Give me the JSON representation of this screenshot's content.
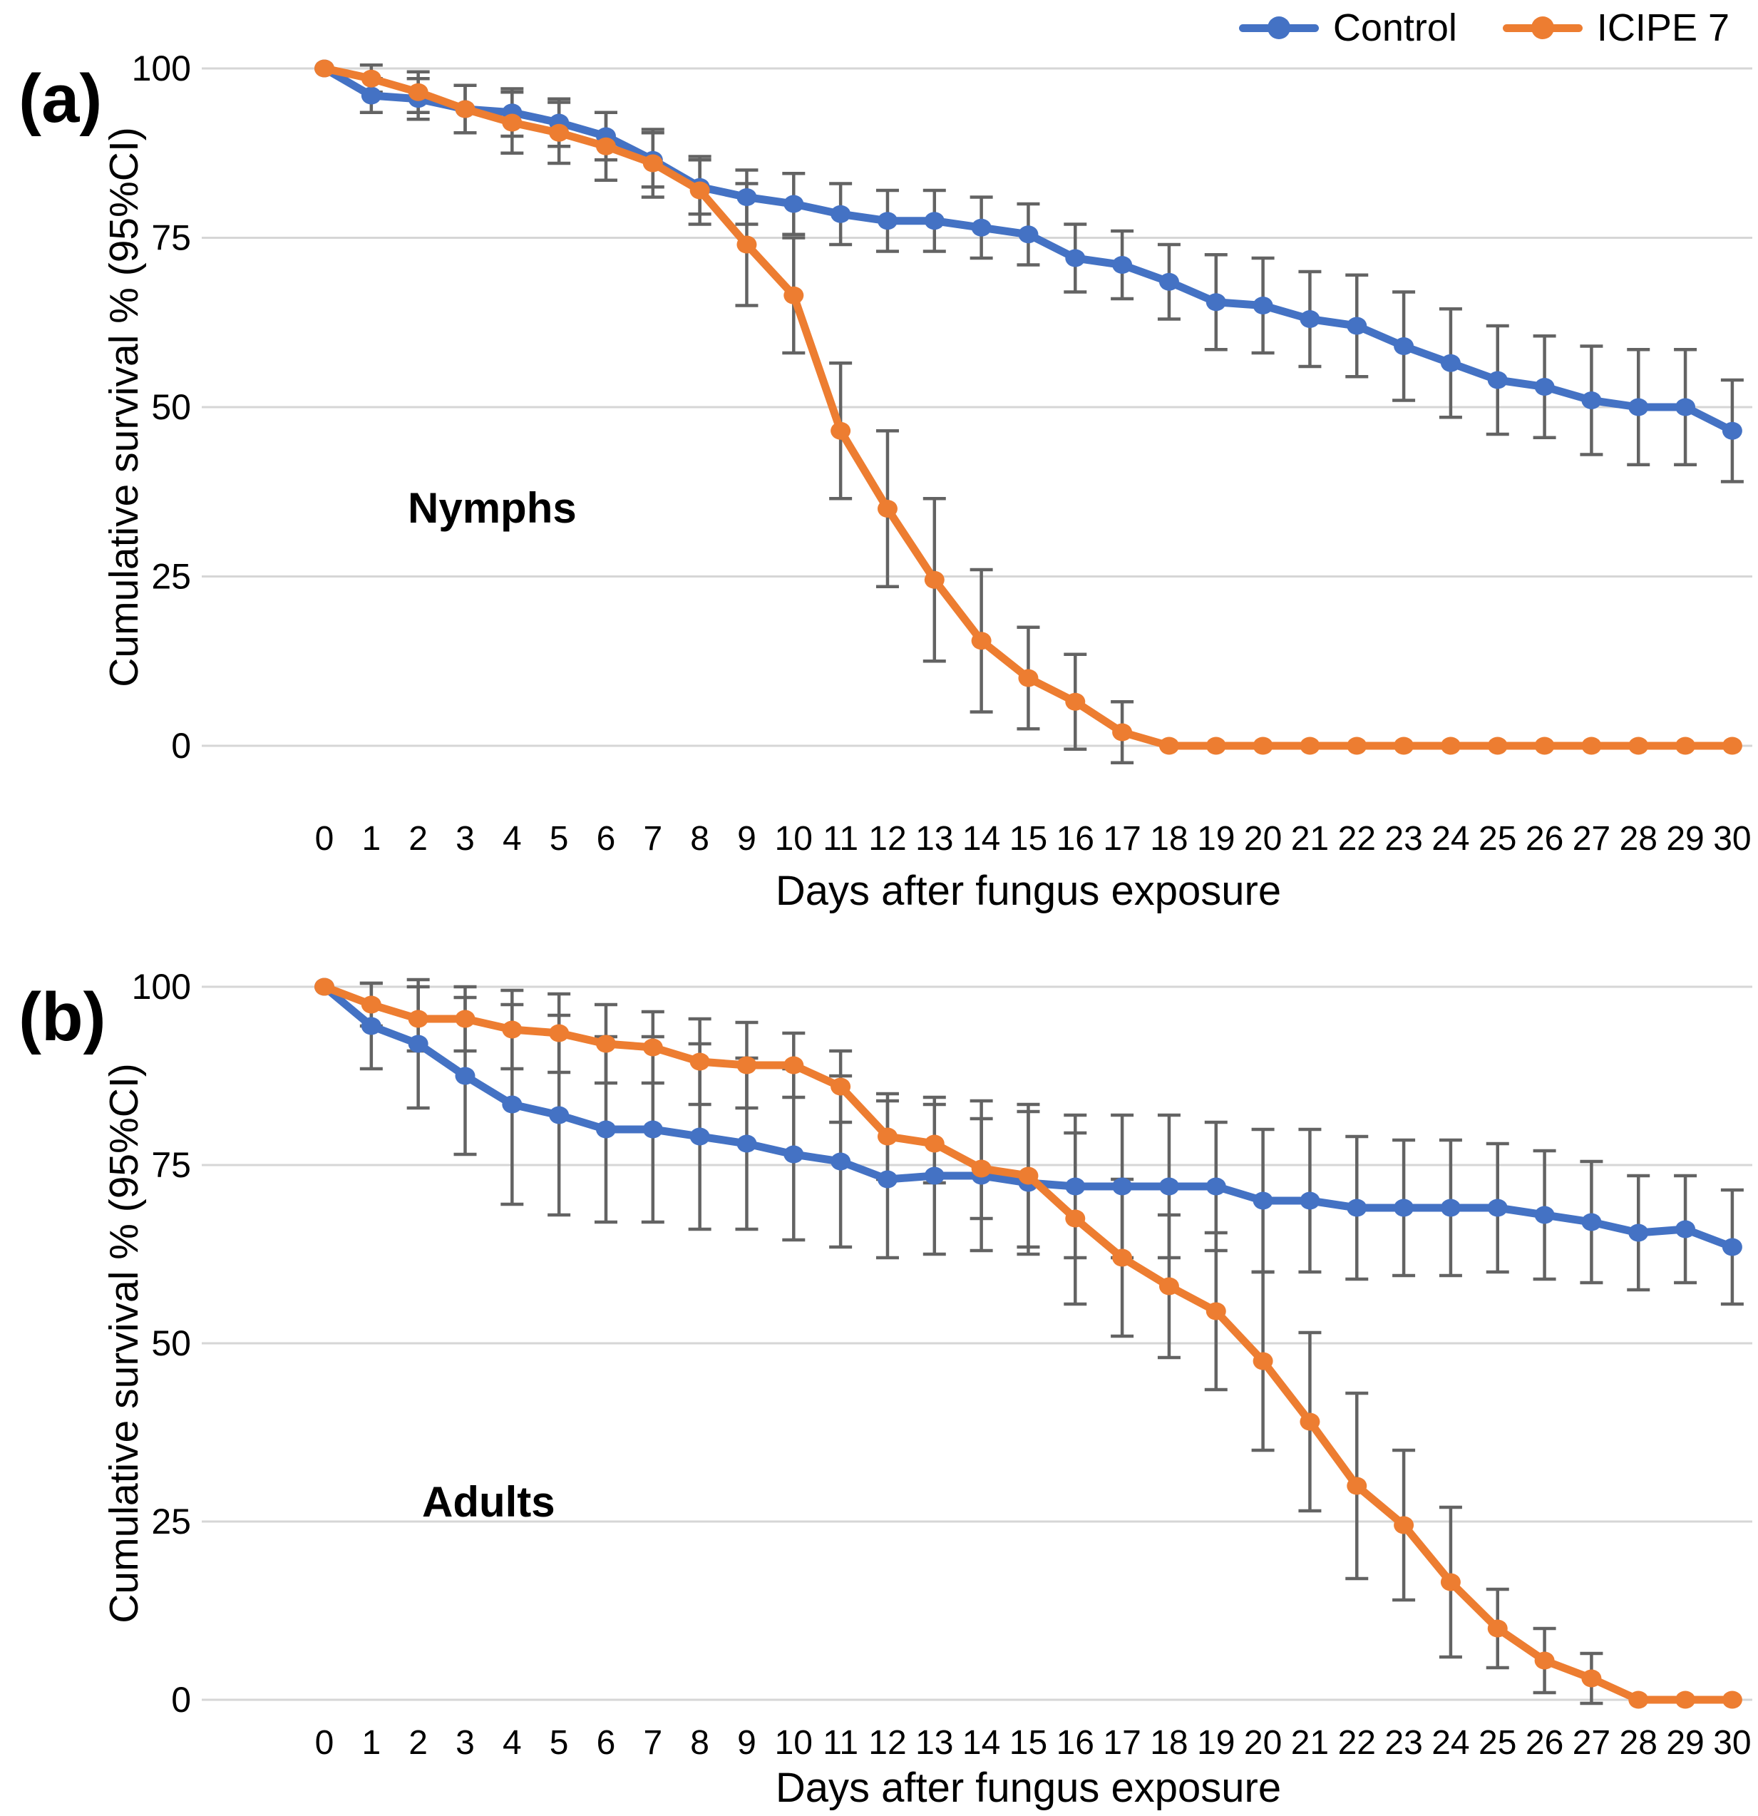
{
  "legend": [
    {
      "label": "Control",
      "color": "#4472C4"
    },
    {
      "label": "ICIPE 7",
      "color": "#ED7D31"
    }
  ],
  "colors": {
    "control": "#4472C4",
    "icipe7": "#ED7D31",
    "error_bar": "#636363",
    "gridline": "#D6D6D6",
    "text": "#000000"
  },
  "chart_data": [
    {
      "type": "line",
      "panel": "(a)",
      "group_label": "Nymphs",
      "xlabel": "Days after fungus exposure",
      "ylabel": "Cumulative survival % (95%CI)",
      "x": [
        0,
        1,
        2,
        3,
        4,
        5,
        6,
        7,
        8,
        9,
        10,
        11,
        12,
        13,
        14,
        15,
        16,
        17,
        18,
        19,
        20,
        21,
        22,
        23,
        24,
        25,
        26,
        27,
        28,
        29,
        30
      ],
      "yticks": [
        100,
        75,
        50,
        25,
        0
      ],
      "ylim": [
        0,
        100
      ],
      "grid": "horizontal",
      "legend_position": "top-right",
      "error_bars": "95% CI",
      "series": [
        {
          "name": "Control",
          "color": "#4472C4",
          "values": [
            100,
            96,
            95.5,
            94,
            93.5,
            92,
            90,
            86.5,
            82.5,
            81,
            80,
            78.5,
            77.5,
            77.5,
            76.5,
            75.5,
            72,
            71,
            68.5,
            65.5,
            65,
            63,
            62,
            59,
            56.5,
            54,
            53,
            51,
            50,
            50,
            46.5
          ],
          "ci": [
            0,
            2.5,
            3,
            3.5,
            3.5,
            3.5,
            3.5,
            4,
            4,
            4,
            4.5,
            4.5,
            4.5,
            4.5,
            4.5,
            4.5,
            5,
            5,
            5.5,
            7,
            7,
            7,
            7.5,
            8,
            8,
            8,
            7.5,
            8,
            8.5,
            8.5,
            7.5
          ]
        },
        {
          "name": "ICIPE 7",
          "color": "#ED7D31",
          "values": [
            100,
            98.5,
            96.5,
            94,
            92,
            90.5,
            88.5,
            86,
            82,
            74,
            66.5,
            46.5,
            35,
            24.5,
            15.5,
            10,
            6.5,
            2,
            0,
            0,
            0,
            0,
            0,
            0,
            0,
            0,
            0,
            0,
            0,
            0,
            0
          ],
          "ci": [
            0,
            2,
            3,
            3.5,
            4.5,
            4.5,
            5,
            5,
            5,
            9,
            8.5,
            10,
            11.5,
            12,
            10.5,
            7.5,
            7,
            4.5,
            0,
            0,
            0,
            0,
            0,
            0,
            0,
            0,
            0,
            0,
            0,
            0,
            0
          ]
        }
      ]
    },
    {
      "type": "line",
      "panel": "(b)",
      "group_label": "Adults",
      "xlabel": "Days after fungus exposure",
      "ylabel": "Cumulative survival % (95%CI)",
      "x": [
        0,
        1,
        2,
        3,
        4,
        5,
        6,
        7,
        8,
        9,
        10,
        11,
        12,
        13,
        14,
        15,
        16,
        17,
        18,
        19,
        20,
        21,
        22,
        23,
        24,
        25,
        26,
        27,
        28,
        29,
        30
      ],
      "yticks": [
        100,
        75,
        50,
        25,
        0
      ],
      "ylim": [
        0,
        100
      ],
      "grid": "horizontal",
      "legend_position": "none",
      "error_bars": "95% CI",
      "series": [
        {
          "name": "Control",
          "color": "#4472C4",
          "values": [
            100,
            94.5,
            92,
            87.5,
            83.5,
            82,
            80,
            80,
            79,
            78,
            76.5,
            75.5,
            73,
            73.5,
            73.5,
            72.5,
            72,
            72,
            72,
            72,
            70,
            70,
            69,
            69,
            69,
            69,
            68,
            67,
            65.5,
            66,
            63.5
          ],
          "ci": [
            0,
            6,
            9,
            11,
            14,
            14,
            13,
            13,
            13,
            12,
            12,
            12,
            11,
            11,
            10.5,
            10,
            10,
            10,
            10,
            9,
            10,
            10,
            10,
            9.5,
            9.5,
            9,
            9,
            8.5,
            8,
            7.5,
            8
          ]
        },
        {
          "name": "ICIPE 7",
          "color": "#ED7D31",
          "values": [
            100,
            97.5,
            95.5,
            95.5,
            94,
            93.5,
            92,
            91.5,
            89.5,
            89,
            89,
            86,
            79,
            78,
            74.5,
            73.5,
            67.5,
            62,
            58,
            54.5,
            47.5,
            39,
            30,
            24.5,
            16.5,
            10,
            5.5,
            3,
            0,
            0,
            0
          ],
          "ci": [
            0,
            3,
            4.5,
            4.5,
            5.5,
            5.5,
            5.5,
            5,
            6,
            6,
            4.5,
            5,
            6,
            5.5,
            7,
            10,
            12,
            11,
            10,
            11,
            12.5,
            12.5,
            13,
            10.5,
            10.5,
            5.5,
            4.5,
            3.5,
            0,
            0,
            0
          ]
        }
      ]
    }
  ]
}
